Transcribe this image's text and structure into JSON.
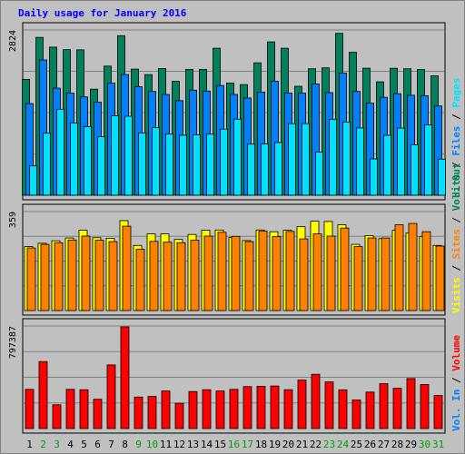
{
  "title": "Daily usage for January 2016",
  "colors": {
    "background": "#c0c0c0",
    "title": "#0000ff",
    "hits": "#00805c",
    "files": "#0080ff",
    "pages": "#00e0ff",
    "visits": "#ffff00",
    "sites": "#ff8000",
    "volume": "#ff0000",
    "weekday_label": "#000000",
    "weekend_label": "#00a000"
  },
  "right_labels": {
    "top": [
      {
        "text": "Hits",
        "color_key": "hits"
      },
      {
        "text": "Files",
        "color_key": "files"
      },
      {
        "text": "Pages",
        "color_key": "pages"
      }
    ],
    "middle": [
      {
        "text": "Visits",
        "color_key": "visits"
      },
      {
        "text": "Sites",
        "color_key": "sites"
      },
      {
        "text": "Vol. Out",
        "color_key": "hits"
      }
    ],
    "bottom": [
      {
        "text": "Vol. In",
        "color_key": "files"
      },
      {
        "text": "Volume",
        "color_key": "volume"
      }
    ]
  },
  "chart_data": [
    {
      "type": "bar",
      "panel": "top",
      "ymax_label": "2824",
      "ylim": [
        0,
        2824
      ],
      "categories": [
        "1",
        "2",
        "3",
        "4",
        "5",
        "6",
        "7",
        "8",
        "9",
        "10",
        "11",
        "12",
        "13",
        "14",
        "15",
        "16",
        "17",
        "18",
        "19",
        "20",
        "21",
        "22",
        "23",
        "24",
        "25",
        "26",
        "27",
        "28",
        "29",
        "30",
        "31"
      ],
      "weekend_days": [
        2,
        3,
        9,
        10,
        16,
        17,
        23,
        24,
        30,
        31
      ],
      "series": [
        {
          "name": "Hits",
          "values": [
            1980,
            2697,
            2530,
            2487,
            2484,
            1812,
            2207,
            2727,
            2155,
            2060,
            2165,
            1946,
            2150,
            2150,
            2512,
            1918,
            1890,
            2262,
            2620,
            2512,
            1862,
            2162,
            2177,
            2767,
            2442,
            2170,
            1938,
            2169,
            2162,
            2147,
            2041
          ]
        },
        {
          "name": "Files",
          "values": [
            1565,
            2312,
            1830,
            1744,
            1680,
            1590,
            1917,
            2062,
            1854,
            1774,
            1722,
            1617,
            1795,
            1779,
            1875,
            1722,
            1662,
            1762,
            1947,
            1744,
            1744,
            1900,
            1754,
            2087,
            1774,
            1575,
            1672,
            1735,
            1708,
            1700,
            1525
          ]
        },
        {
          "name": "Pages",
          "values": [
            501,
            1060,
            1470,
            1235,
            1172,
            1000,
            1360,
            1350,
            1065,
            1157,
            1045,
            1025,
            1030,
            1045,
            1130,
            1300,
            873,
            877,
            900,
            1225,
            1224,
            735,
            1294,
            1250,
            1150,
            620,
            1024,
            1147,
            863,
            1204,
            616
          ]
        }
      ]
    },
    {
      "type": "bar",
      "panel": "middle",
      "ymax_label": "359",
      "ylim": [
        0,
        359
      ],
      "categories": [
        "1",
        "2",
        "3",
        "4",
        "5",
        "6",
        "7",
        "8",
        "9",
        "10",
        "11",
        "12",
        "13",
        "14",
        "15",
        "16",
        "17",
        "18",
        "19",
        "20",
        "21",
        "22",
        "23",
        "24",
        "25",
        "26",
        "27",
        "28",
        "29",
        "30",
        "31"
      ],
      "series": [
        {
          "name": "Visits",
          "values": [
            232,
            244,
            253,
            263,
            291,
            264,
            262,
            326,
            236,
            278,
            278,
            258,
            276,
            291,
            292,
            265,
            254,
            292,
            286,
            291,
            304,
            324,
            323,
            311,
            240,
            272,
            261,
            291,
            281,
            268,
            236
          ]
        },
        {
          "name": "Sites",
          "values": [
            227,
            240,
            246,
            256,
            270,
            255,
            250,
            306,
            222,
            251,
            248,
            246,
            255,
            270,
            284,
            269,
            250,
            288,
            268,
            287,
            260,
            278,
            270,
            299,
            232,
            263,
            263,
            311,
            316,
            286,
            234
          ]
        }
      ]
    },
    {
      "type": "bar",
      "panel": "bottom",
      "ymax_label": "797387",
      "ylim": [
        0,
        797387
      ],
      "categories": [
        "1",
        "2",
        "3",
        "4",
        "5",
        "6",
        "7",
        "8",
        "9",
        "10",
        "11",
        "12",
        "13",
        "14",
        "15",
        "16",
        "17",
        "18",
        "19",
        "20",
        "21",
        "22",
        "23",
        "24",
        "25",
        "26",
        "27",
        "28",
        "29",
        "30",
        "31"
      ],
      "series": [
        {
          "name": "Volume",
          "values": [
            305000,
            521000,
            185000,
            305000,
            302000,
            228000,
            495000,
            790000,
            245000,
            250000,
            292000,
            196000,
            288000,
            302000,
            292000,
            305000,
            326000,
            329000,
            331000,
            302000,
            377000,
            422000,
            363000,
            301000,
            222000,
            284000,
            349000,
            313000,
            389000,
            342000,
            257000
          ]
        }
      ]
    }
  ]
}
